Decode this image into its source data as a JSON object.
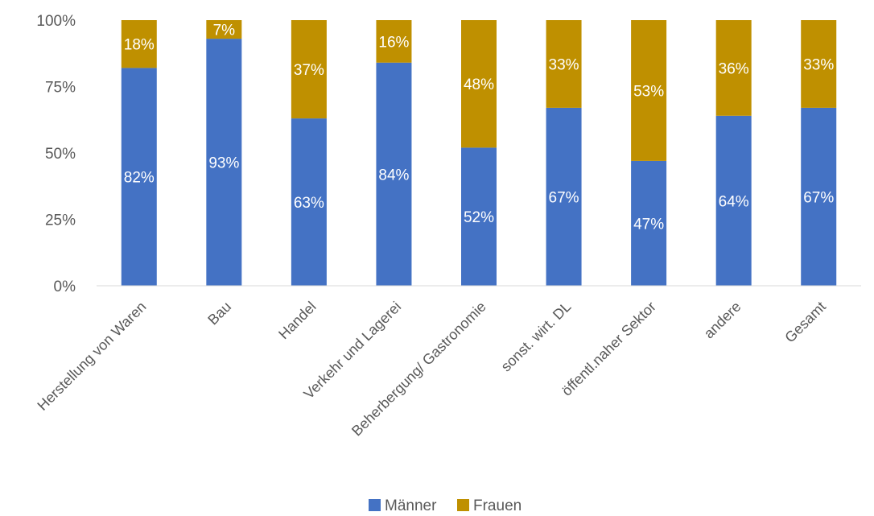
{
  "chart_data": {
    "type": "bar",
    "stacked": true,
    "percent_stacked": true,
    "categories": [
      "Herstellung von Waren",
      "Bau",
      "Handel",
      "Verkehr und Lagerei",
      "Beherbergung/ Gastronomie",
      "sonst. wirt. DL",
      "öffentl.naher Sektor",
      "andere",
      "Gesamt"
    ],
    "series": [
      {
        "name": "Männer",
        "color": "#4472C4",
        "values": [
          82,
          93,
          63,
          84,
          52,
          67,
          47,
          64,
          67
        ],
        "labels": [
          "82%",
          "93%",
          "63%",
          "84%",
          "52%",
          "67%",
          "47%",
          "64%",
          "67%"
        ]
      },
      {
        "name": "Frauen",
        "color": "#BF9000",
        "values": [
          18,
          7,
          37,
          16,
          48,
          33,
          53,
          36,
          33
        ],
        "labels": [
          "18%",
          "7%",
          "37%",
          "16%",
          "48%",
          "33%",
          "53%",
          "36%",
          "33%"
        ]
      }
    ],
    "y_ticks": [
      "0%",
      "25%",
      "50%",
      "75%",
      "100%"
    ],
    "ylim": [
      0,
      100
    ],
    "grid": false,
    "legend_position": "bottom"
  }
}
